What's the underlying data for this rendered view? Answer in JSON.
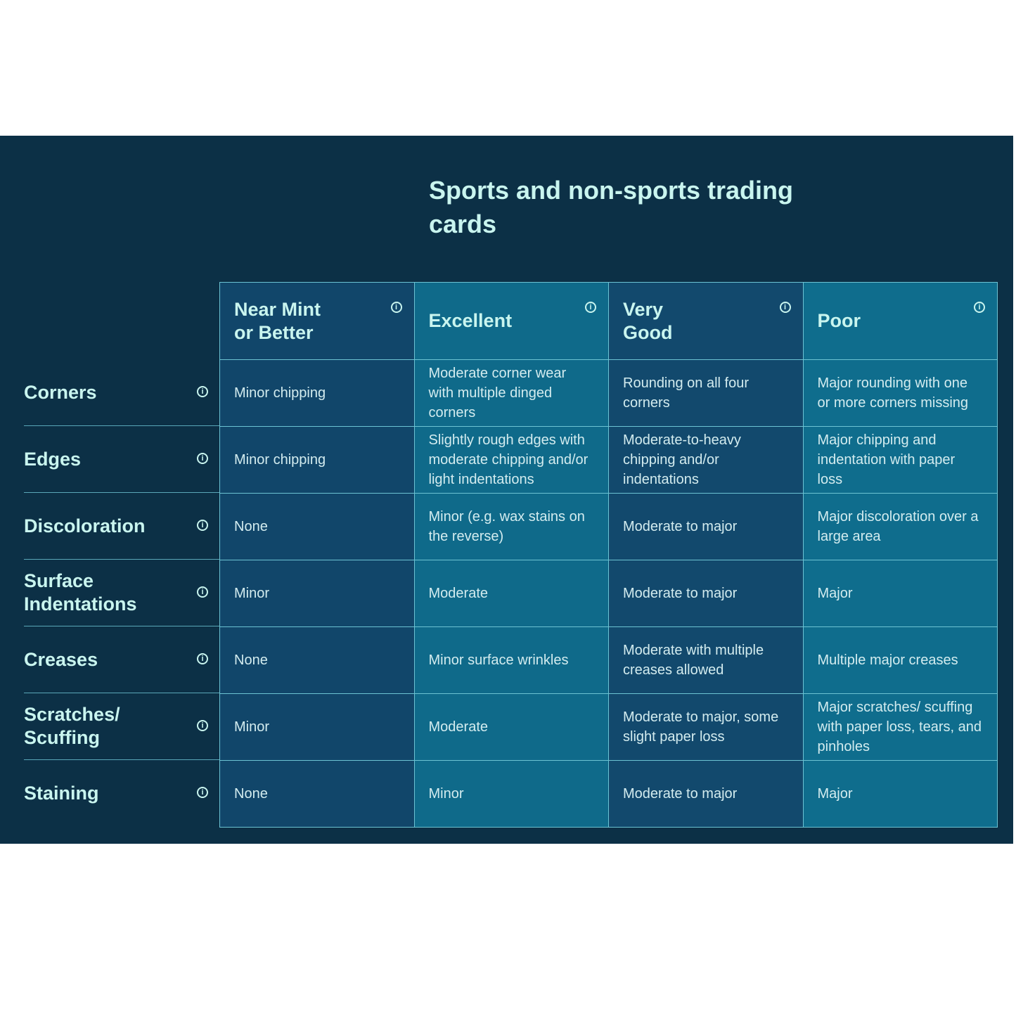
{
  "title": "Sports and non-sports trading cards",
  "info_icon": "info-circle-icon",
  "colors": {
    "background": "#0c3046",
    "accent_text": "#c9f5ef",
    "border": "#6cc3d3"
  },
  "columns": [
    "Near Mint or Better",
    "Excellent",
    "Very Good",
    "Poor"
  ],
  "rows": [
    {
      "label": "Corners",
      "cells": [
        "Minor chipping",
        "Moderate corner wear with multiple dinged corners",
        "Rounding on all four corners",
        "Major rounding with one or more corners missing"
      ]
    },
    {
      "label": "Edges",
      "cells": [
        "Minor chipping",
        "Slightly rough edges with moderate chipping and/or light indentations",
        "Moderate-to-heavy chipping and/or indentations",
        "Major chipping and indentation with paper loss"
      ]
    },
    {
      "label": "Discoloration",
      "cells": [
        "None",
        "Minor (e.g. wax stains on the reverse)",
        "Moderate to major",
        "Major discoloration over a large area"
      ]
    },
    {
      "label": "Surface Indentations",
      "cells": [
        "Minor",
        "Moderate",
        "Moderate to major",
        "Major"
      ]
    },
    {
      "label": "Creases",
      "cells": [
        "None",
        "Minor surface wrinkles",
        "Moderate with multiple creases allowed",
        "Multiple major creases"
      ]
    },
    {
      "label": "Scratches/ Scuffing",
      "cells": [
        "Minor",
        "Moderate",
        "Moderate to major, some slight paper loss",
        "Major scratches/ scuffing with paper loss, tears, and pinholes"
      ]
    },
    {
      "label": "Staining",
      "cells": [
        "None",
        "Minor",
        "Moderate to major",
        "Major"
      ]
    }
  ]
}
